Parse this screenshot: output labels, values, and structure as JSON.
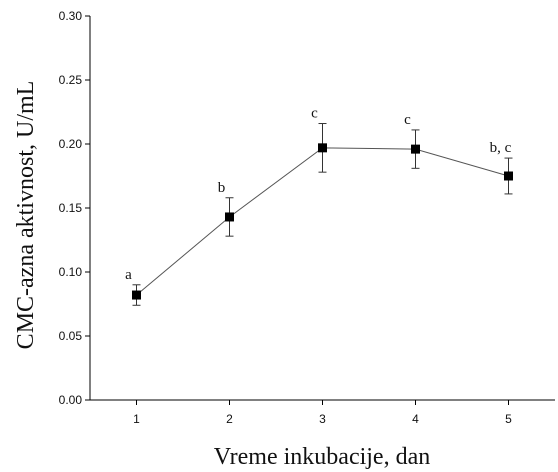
{
  "chart_data": {
    "type": "line",
    "title": "",
    "xlabel": "Vreme inkubacije, dan",
    "ylabel": "CMC-azna aktivnost, U/mL",
    "xlim": [
      0.5,
      5.5
    ],
    "ylim": [
      0.0,
      0.3
    ],
    "x_ticks": [
      "1",
      "2",
      "3",
      "4",
      "5"
    ],
    "y_ticks": [
      "0.00",
      "0.05",
      "0.10",
      "0.15",
      "0.20",
      "0.25",
      "0.30"
    ],
    "grid": false,
    "legend": "none",
    "series": [
      {
        "x": [
          1,
          2,
          3,
          4,
          5
        ],
        "y": [
          0.082,
          0.143,
          0.197,
          0.196,
          0.175
        ],
        "error": [
          0.008,
          0.015,
          0.019,
          0.015,
          0.014
        ],
        "annotations": [
          "a",
          "b",
          "c",
          "c",
          "b, c"
        ],
        "marker": "square",
        "color": "#000000"
      }
    ]
  }
}
